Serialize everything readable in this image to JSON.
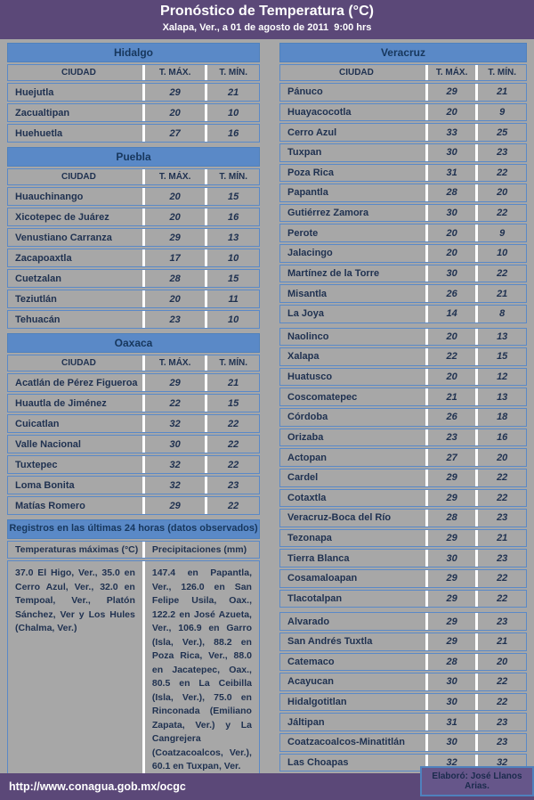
{
  "header": {
    "title": "Pronóstico de Temperatura (°C)",
    "subtitle": "Xalapa, Ver., a 01 de agosto de 2011  9:00 hrs"
  },
  "columns": {
    "city": "CIUDAD",
    "tmax": "T. MÁX.",
    "tmin": "T. MÍN."
  },
  "tables": [
    {
      "state": "Hidalgo",
      "column": "left",
      "rows": [
        [
          "Huejutla",
          29,
          21
        ],
        [
          "Zacualtipan",
          20,
          10
        ],
        [
          "Huehuetla",
          27,
          16
        ]
      ]
    },
    {
      "state": "Puebla",
      "column": "left",
      "rows": [
        [
          "Huauchinango",
          20,
          15
        ],
        [
          "Xicotepec de Juárez",
          20,
          16
        ],
        [
          "Venustiano Carranza",
          29,
          13
        ],
        [
          "Zacapoaxtla",
          17,
          10
        ],
        [
          "Cuetzalan",
          28,
          15
        ],
        [
          "Teziutlán",
          20,
          11
        ],
        [
          "Tehuacán",
          23,
          10
        ]
      ]
    },
    {
      "state": "Oaxaca",
      "column": "left",
      "rows": [
        [
          "Acatlán de Pérez Figueroa",
          29,
          21
        ],
        [
          "Huautla de Jiménez",
          22,
          15
        ],
        [
          "Cuicatlan",
          32,
          22
        ],
        [
          "Valle Nacional",
          30,
          22
        ],
        [
          "Tuxtepec",
          32,
          22
        ],
        [
          "Loma Bonita",
          32,
          23
        ],
        [
          "Matías Romero",
          29,
          22
        ]
      ]
    },
    {
      "state": "Veracruz",
      "column": "right",
      "break_before_rows": [
        12,
        26
      ],
      "rows": [
        [
          "Pánuco",
          29,
          21
        ],
        [
          "Huayacocotla",
          20,
          9
        ],
        [
          "Cerro Azul",
          33,
          25
        ],
        [
          "Tuxpan",
          30,
          23
        ],
        [
          "Poza Rica",
          31,
          22
        ],
        [
          "Papantla",
          28,
          20
        ],
        [
          "Gutiérrez Zamora",
          30,
          22
        ],
        [
          "Perote",
          20,
          9
        ],
        [
          "Jalacingo",
          20,
          10
        ],
        [
          "Martínez de la Torre",
          30,
          22
        ],
        [
          "Misantla",
          26,
          21
        ],
        [
          "La Joya",
          14,
          8
        ],
        [
          "Naolinco",
          20,
          13
        ],
        [
          "Xalapa",
          22,
          15
        ],
        [
          "Huatusco",
          20,
          12
        ],
        [
          "Coscomatepec",
          21,
          13
        ],
        [
          "Córdoba",
          26,
          18
        ],
        [
          "Orizaba",
          23,
          16
        ],
        [
          "Actopan",
          27,
          20
        ],
        [
          "Cardel",
          29,
          22
        ],
        [
          "Cotaxtla",
          29,
          22
        ],
        [
          "Veracruz-Boca del Río",
          28,
          23
        ],
        [
          "Tezonapa",
          29,
          21
        ],
        [
          "Tierra Blanca",
          30,
          23
        ],
        [
          "Cosamaloapan",
          29,
          22
        ],
        [
          "Tlacotalpan",
          29,
          22
        ],
        [
          "Alvarado",
          29,
          23
        ],
        [
          "San Andrés Tuxtla",
          29,
          21
        ],
        [
          "Catemaco",
          28,
          20
        ],
        [
          "Acayucan",
          30,
          22
        ],
        [
          "Hidalgotitlan",
          30,
          22
        ],
        [
          "Jáltipan",
          31,
          23
        ],
        [
          "Coatzacoalcos-Minatitlán",
          30,
          23
        ],
        [
          "Las Choapas",
          32,
          32
        ]
      ]
    }
  ],
  "observations": {
    "title": "Registros en las últimas 24 horas (datos observados)",
    "temps_header": "Temperaturas máximas (°C)",
    "precip_header": "Precipitaciones (mm)",
    "temps_text": "37.0 El Higo, Ver., 35.0 en Cerro Azul, Ver., 32.0 en Tempoal, Ver., Platón Sánchez, Ver y Los Hules (Chalma, Ver.)",
    "precip_text": "147.4 en Papantla, Ver., 126.0 en San Felipe Usila, Oax., 122.2 en José Azueta, Ver., 106.9 en Garro (Isla, Ver.), 88.2 en Poza Rica, Ver., 88.0 en Jacatepec, Oax., 80.5 en La Ceibilla (Isla, Ver.), 75.0 en Rinconada (Emiliano Zapata, Ver.) y La Cangrejera (Coatzacoalcos, Ver.), 60.1 en Tuxpan, Ver."
  },
  "footer": {
    "url": "http://www.conagua.gob.mx/ocgc",
    "credit": "Elaboró: José Llanos Arias."
  },
  "colors": {
    "band_purple": "#5b4878",
    "title_blue": "#5a89c7",
    "border_blue": "#4f81bd",
    "background_gray": "#a7a7a7",
    "text_navy": "#1f3150"
  }
}
